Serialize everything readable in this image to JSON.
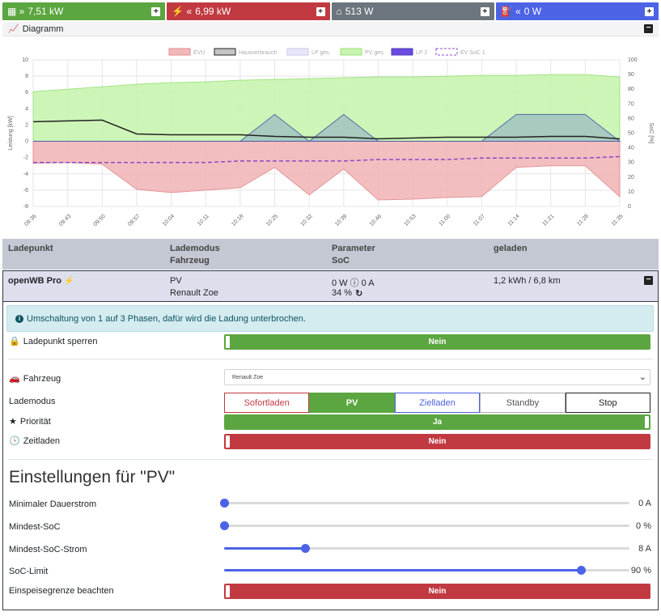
{
  "topbar": {
    "grid": "7,51 kW",
    "pv": "6,99 kW",
    "house": "513 W",
    "charge": "0 W"
  },
  "diagram": {
    "title": "Diagramm"
  },
  "chart_data": {
    "type": "area",
    "legend": [
      "EVU",
      "Hausverbrauch",
      "LP ges.",
      "PV ges.",
      "LP 2",
      "EV SoC 1"
    ],
    "ylabel": "Leistung [kW]",
    "y2label": "SoC [%]",
    "ylim": [
      -8,
      10
    ],
    "y2lim": [
      0,
      100
    ],
    "yticks": [
      "10",
      "8",
      "6",
      "4",
      "2",
      "0",
      "-2",
      "-4",
      "-6",
      "-8"
    ],
    "y2ticks": [
      "100",
      "90",
      "80",
      "70",
      "60",
      "50",
      "40",
      "30",
      "20",
      "10",
      "0"
    ],
    "xticks": [
      "09:36",
      "09:43",
      "09:50",
      "09:57",
      "10:04",
      "10:11",
      "10:18",
      "10:25",
      "10:32",
      "10:39",
      "10:46",
      "10:53",
      "11:00",
      "11:07",
      "11:14",
      "11:21",
      "11:28",
      "11:35"
    ],
    "series": [
      {
        "name": "PV ges.",
        "values": [
          6.1,
          6.4,
          6.7,
          7.0,
          7.2,
          7.3,
          7.5,
          7.6,
          7.7,
          7.8,
          7.9,
          7.9,
          8.0,
          8.1,
          8.1,
          8.2,
          8.2,
          7.9
        ]
      },
      {
        "name": "EVU",
        "values": [
          -2.7,
          -2.6,
          -2.8,
          -5.9,
          -6.3,
          -6.0,
          -5.7,
          -3.2,
          -6.6,
          -3.4,
          -7.2,
          -7.1,
          -6.9,
          -6.8,
          -3.2,
          -3.0,
          -3.0,
          -6.8
        ]
      },
      {
        "name": "Hausverbrauch",
        "values": [
          2.4,
          2.5,
          2.6,
          0.9,
          0.8,
          0.8,
          0.8,
          0.6,
          0.5,
          0.5,
          0.3,
          0.4,
          0.5,
          0.5,
          0.5,
          0.6,
          0.6,
          0.3
        ]
      },
      {
        "name": "LP 2",
        "values": [
          0,
          0,
          0,
          0,
          0,
          0,
          0,
          3.3,
          0,
          3.3,
          0,
          0,
          0,
          0,
          3.3,
          3.3,
          3.3,
          0
        ]
      },
      {
        "name": "EV SoC 1",
        "values": [
          30,
          30,
          30,
          30,
          30,
          30,
          31,
          31,
          31,
          31,
          32,
          32,
          32,
          33,
          33,
          33,
          33,
          34
        ]
      }
    ]
  },
  "lp_head": {
    "col1": "Ladepunkt",
    "col2a": "Lademodus",
    "col2b": "Fahrzeug",
    "col3a": "Parameter",
    "col3b": "SoC",
    "col4": "geladen"
  },
  "lp_row": {
    "name": "openWB Pro",
    "mode": "PV",
    "vehicle": "Renault Zoe",
    "params": "0 W ⓘ 0 A",
    "soc": "34 %",
    "charged": "1,2 kWh / 6,8 km"
  },
  "alert": "Umschaltung von 1 auf 3 Phasen, dafür wird die Ladung unterbrochen.",
  "settings": {
    "lock_label": "Ladepunkt sperren",
    "lock_value": "Nein",
    "vehicle_label": "Fahrzeug",
    "vehicle_value": "Renault Zoe",
    "mode_label": "Lademodus",
    "modes": [
      "Sofortladen",
      "PV",
      "Zielladen",
      "Standby",
      "Stop"
    ],
    "priority_label": "Priorität",
    "priority_value": "Ja",
    "timed_label": "Zeitladen",
    "timed_value": "Nein"
  },
  "pv_settings": {
    "title": "Einstellungen für \"PV\"",
    "min_current_label": "Minimaler Dauerstrom",
    "min_current_value": "0 A",
    "min_current_level": 0,
    "min_soc_label": "Mindest-SoC",
    "min_soc_value": "0 %",
    "min_soc_level": 0,
    "min_soc_current_label": "Mindest-SoC-Strom",
    "min_soc_current_value": "8 A",
    "min_soc_current_level": 0.2,
    "soc_limit_label": "SoC-Limit",
    "soc_limit_value": "90 %",
    "soc_limit_level": 0.88,
    "feed_limit_label": "Einspeisegrenze beachten",
    "feed_limit_value": "Nein"
  }
}
